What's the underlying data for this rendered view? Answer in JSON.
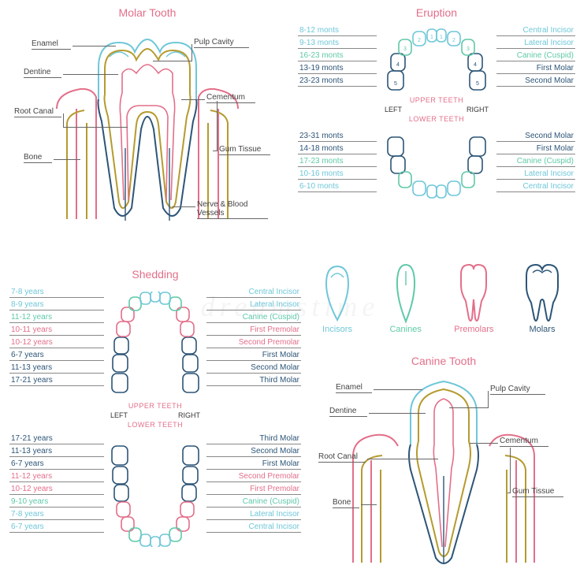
{
  "colors": {
    "pink": "#e36f8a",
    "cyan": "#6fc7d9",
    "green": "#5fc9a8",
    "olive": "#b59b2f",
    "navy": "#2d5577",
    "grey": "#6b6b6b"
  },
  "molar": {
    "title": "Molar Tooth",
    "labels": {
      "enamel": "Enamel",
      "dentine": "Dentine",
      "root_canal": "Root Canal",
      "bone": "Bone",
      "pulp_cavity": "Pulp Cavity",
      "cementum": "Cementum",
      "gum_tissue": "Gum Tissue",
      "nerve": "Nerve & Blood\nVessels"
    }
  },
  "eruption": {
    "title": "Eruption",
    "upper": "UPPER TEETH",
    "lower": "LOWER TEETH",
    "left": "LEFT",
    "right": "RIGHT",
    "left_upper": [
      "8-12 monts",
      "9-13 monts",
      "16-23 monts",
      "13-19 monts",
      "23-23 monts"
    ],
    "right_upper": [
      "Central Incisor",
      "Lateral Incisor",
      "Canine (Cuspid)",
      "First Molar",
      "Second Molar"
    ],
    "left_lower": [
      "23-31 monts",
      "14-18 monts",
      "17-23 monts",
      "10-16 monts",
      "6-10 monts"
    ],
    "right_lower": [
      "Second Molar",
      "First Molar",
      "Canine (Cuspid)",
      "Lateral Incisor",
      "Central Incisor"
    ],
    "row_colors_upper": [
      "cyan",
      "cyan",
      "green",
      "navy",
      "navy"
    ],
    "row_colors_lower": [
      "navy",
      "navy",
      "green",
      "cyan",
      "cyan"
    ]
  },
  "shedding": {
    "title": "Shedding",
    "upper": "UPPER TEETH",
    "lower": "LOWER TEETH",
    "left": "LEFT",
    "right": "RIGHT",
    "left_upper": [
      "7-8 years",
      "8-9 years",
      "11-12 years",
      "10-11 years",
      "10-12 years",
      "6-7 years",
      "11-13 years",
      "17-21 years"
    ],
    "right_upper": [
      "Central Incisor",
      "Lateral Incisor",
      "Canine (Cuspid)",
      "First Premolar",
      "Second Premolar",
      "First Molar",
      "Second Molar",
      "Third Molar"
    ],
    "left_lower": [
      "17-21 years",
      "11-13 years",
      "6-7 years",
      "11-12 years",
      "10-12 years",
      "9-10 years",
      "7-8 years",
      "6-7 years"
    ],
    "right_lower": [
      "Third Molar",
      "Second Molar",
      "First Molar",
      "Second Premolar",
      "First Premolar",
      "Canine (Cuspid)",
      "Lateral Incisor",
      "Central Incisor"
    ],
    "row_colors_upper": [
      "cyan",
      "cyan",
      "green",
      "pink",
      "pink",
      "navy",
      "navy",
      "navy"
    ],
    "row_colors_lower": [
      "navy",
      "navy",
      "navy",
      "pink",
      "pink",
      "green",
      "cyan",
      "cyan"
    ]
  },
  "types": {
    "incisors": "Incisors",
    "canines": "Canines",
    "premolars": "Premolars",
    "molars": "Molars"
  },
  "canine": {
    "title": "Canine Tooth",
    "labels": {
      "enamel": "Enamel",
      "dentine": "Dentine",
      "root_canal": "Root Canal",
      "bone": "Bone",
      "pulp_cavity": "Pulp Cavity",
      "cementum": "Cementum",
      "gum_tissue": "Gum Tissue"
    }
  },
  "watermark": "dreamstime"
}
